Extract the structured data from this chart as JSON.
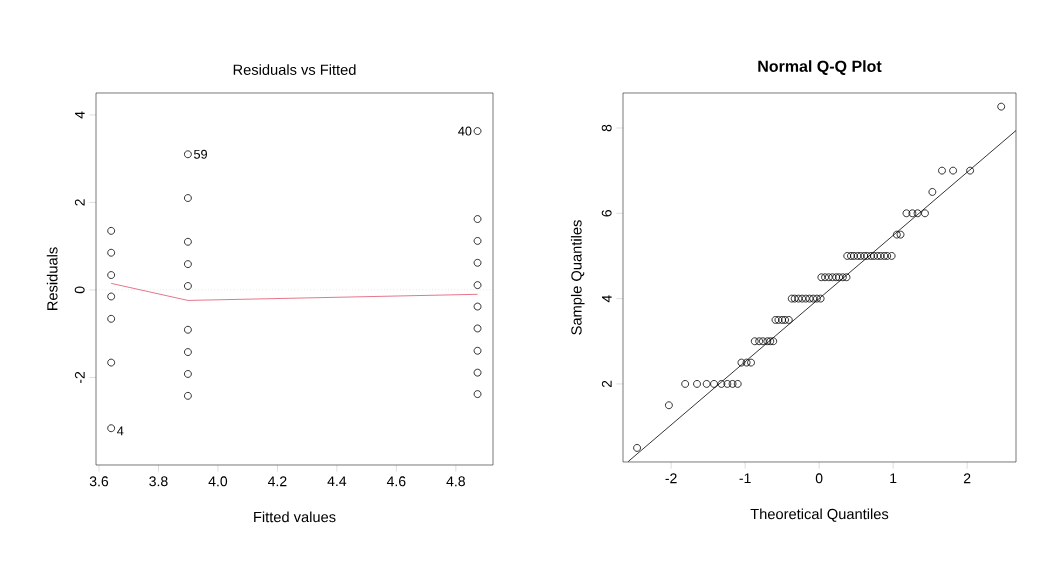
{
  "chart_data": [
    {
      "type": "scatter",
      "title": "Residuals vs Fitted",
      "xlabel": "Fitted values",
      "ylabel": "Residuals",
      "xlim": [
        3.59,
        4.925
      ],
      "ylim": [
        -4.0,
        4.5
      ],
      "xticks": [
        3.6,
        3.8,
        {
          "value": 4.0,
          "label": "4.0"
        },
        4.2,
        4.4,
        4.6,
        4.8
      ],
      "yticks": [
        -2,
        0,
        2,
        4
      ],
      "grid": false,
      "series": [
        {
          "marker": "circle",
          "color": "#000000",
          "x": [
            3.641,
            3.641,
            3.641,
            3.641,
            3.641,
            3.641,
            3.641,
            3.899,
            3.899,
            3.899,
            3.899,
            3.899,
            3.899,
            3.899,
            3.899,
            3.899,
            4.873,
            4.873,
            4.873,
            4.873,
            4.873,
            4.873,
            4.873,
            4.873,
            4.873,
            4.873
          ],
          "values": [
            1.35,
            0.85,
            0.34,
            -0.15,
            -0.66,
            -1.66,
            -3.16,
            3.1,
            2.1,
            1.1,
            0.59,
            0.09,
            -0.91,
            -1.42,
            -1.92,
            -2.42,
            3.63,
            1.62,
            1.12,
            0.62,
            0.11,
            -0.38,
            -0.88,
            -1.39,
            -1.89,
            -2.38
          ]
        },
        {
          "type": "line",
          "marker": "none",
          "color": "#df536b",
          "x": [
            3.641,
            3.899,
            4.873
          ],
          "values": [
            0.15,
            -0.24,
            -0.1
          ]
        }
      ],
      "ref_lines": [
        {
          "axis": "y",
          "value": 0,
          "color": "#999999",
          "line_style": "dotted"
        }
      ],
      "annotations": [
        {
          "text": "59",
          "x": 3.899,
          "y": 3.1
        },
        {
          "text": "40",
          "x": 4.873,
          "y": 3.63
        },
        {
          "text": "4",
          "x": 3.641,
          "y": -3.16
        }
      ]
    },
    {
      "type": "scatter",
      "title": "Normal Q-Q Plot",
      "xlabel": "Theoretical Quantiles",
      "ylabel": "Sample Quantiles",
      "xlim": [
        -2.65,
        2.66
      ],
      "ylim": [
        0.17,
        8.82
      ],
      "xticks": [
        -2,
        -1,
        0,
        1,
        2
      ],
      "yticks": [
        2,
        4,
        6,
        8
      ],
      "grid": false,
      "series": [
        {
          "marker": "circle",
          "color": "#000000",
          "x": [
            -2.46,
            -2.03,
            -1.81,
            -1.65,
            -1.52,
            -1.42,
            -1.32,
            -1.24,
            -1.17,
            -1.1,
            -1.05,
            -0.98,
            -0.92,
            -0.87,
            -0.81,
            -0.76,
            -0.7,
            -0.66,
            -0.62,
            -0.59,
            -0.55,
            -0.5,
            -0.46,
            -0.41,
            -0.37,
            -0.33,
            -0.28,
            -0.23,
            -0.18,
            -0.13,
            -0.08,
            -0.03,
            0.02,
            0.03,
            0.08,
            0.13,
            0.18,
            0.23,
            0.27,
            0.32,
            0.37,
            0.38,
            0.43,
            0.47,
            0.52,
            0.56,
            0.61,
            0.65,
            0.7,
            0.74,
            0.79,
            0.83,
            0.88,
            0.92,
            0.98,
            1.05,
            1.1,
            1.18,
            1.26,
            1.33,
            1.43,
            1.53,
            1.66,
            1.81,
            2.04,
            2.46
          ],
          "values": [
            0.5,
            1.5,
            2,
            2,
            2,
            2,
            2,
            2,
            2,
            2,
            2.5,
            2.5,
            2.5,
            3,
            3,
            3,
            3,
            3,
            3,
            3.5,
            3.5,
            3.5,
            3.5,
            3.5,
            4,
            4,
            4,
            4,
            4,
            4,
            4,
            4,
            4,
            4.5,
            4.5,
            4.5,
            4.5,
            4.5,
            4.5,
            4.5,
            4.5,
            5,
            5,
            5,
            5,
            5,
            5,
            5,
            5,
            5,
            5,
            5,
            5,
            5,
            5,
            5.5,
            5.5,
            6,
            6,
            6,
            6,
            6.5,
            7,
            7,
            7,
            8.5
          ]
        },
        {
          "type": "line",
          "marker": "none",
          "color": "#000000",
          "x": [
            -2.58,
            2.66
          ],
          "values": [
            0.18,
            7.94
          ]
        }
      ]
    }
  ]
}
